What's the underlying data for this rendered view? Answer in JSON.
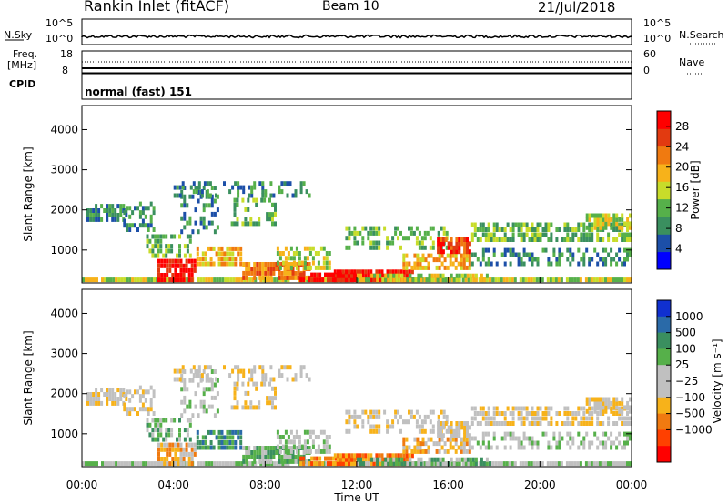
{
  "header": {
    "station": "Rankin Inlet (fitACF)",
    "beam": "Beam 10",
    "date": "21/Jul/2018"
  },
  "top_panels": {
    "nsky_label": "N.Sky",
    "nsky_ticks": [
      "10^5",
      "10^0"
    ],
    "nsearch_label": "N.Search",
    "nsearch_ticks": [
      "10^5",
      "10^0"
    ],
    "freq_label_1": "Freq.",
    "freq_label_2": "[MHz]",
    "freq_ticks": [
      "18",
      "8"
    ],
    "nave_label": "Nave",
    "nave_ticks": [
      "60",
      "0"
    ],
    "cpid_label": "CPID",
    "cpid_text": "normal (fast) 151"
  },
  "colors": {
    "power": [
      "#0000ff",
      "#1c4fa8",
      "#3a8f5f",
      "#56b04a",
      "#c8dc2a",
      "#f7b21a",
      "#f07a10",
      "#e23a10",
      "#ff0000"
    ],
    "velocity": [
      "#ff0000",
      "#ff4000",
      "#f07a10",
      "#f7b21a",
      "#c0c0c0",
      "#c0c0c0",
      "#56b04a",
      "#3a8f5f",
      "#2a6aa8",
      "#1030d0"
    ]
  },
  "chart_data": [
    {
      "type": "heatmap",
      "quantity": "Power",
      "ylabel": "Slant Range [km]",
      "y_ticks": [
        "1000",
        "2000",
        "3000",
        "4000"
      ],
      "ylim": [
        180,
        4600
      ],
      "xlim": [
        0,
        24
      ],
      "colorbar": {
        "label": "Power [dB]",
        "ticks": [
          "4",
          "8",
          "12",
          "16",
          "20",
          "24",
          "28"
        ],
        "range": [
          0,
          31
        ]
      }
    },
    {
      "type": "heatmap",
      "quantity": "Velocity",
      "ylabel": "Slant Range [km]",
      "y_ticks": [
        "1000",
        "2000",
        "3000",
        "4000"
      ],
      "ylim": [
        180,
        4600
      ],
      "xlim": [
        0,
        24
      ],
      "colorbar": {
        "label": "Velocity [m s⁻¹]",
        "ticks": [
          "1000",
          "500",
          "100",
          "25",
          "−25",
          "−100",
          "−500",
          "−1000"
        ]
      },
      "xlabel": "Time UT",
      "x_ticks": [
        "00:00",
        "04:00",
        "08:00",
        "12:00",
        "16:00",
        "20:00",
        "00:00"
      ]
    }
  ]
}
